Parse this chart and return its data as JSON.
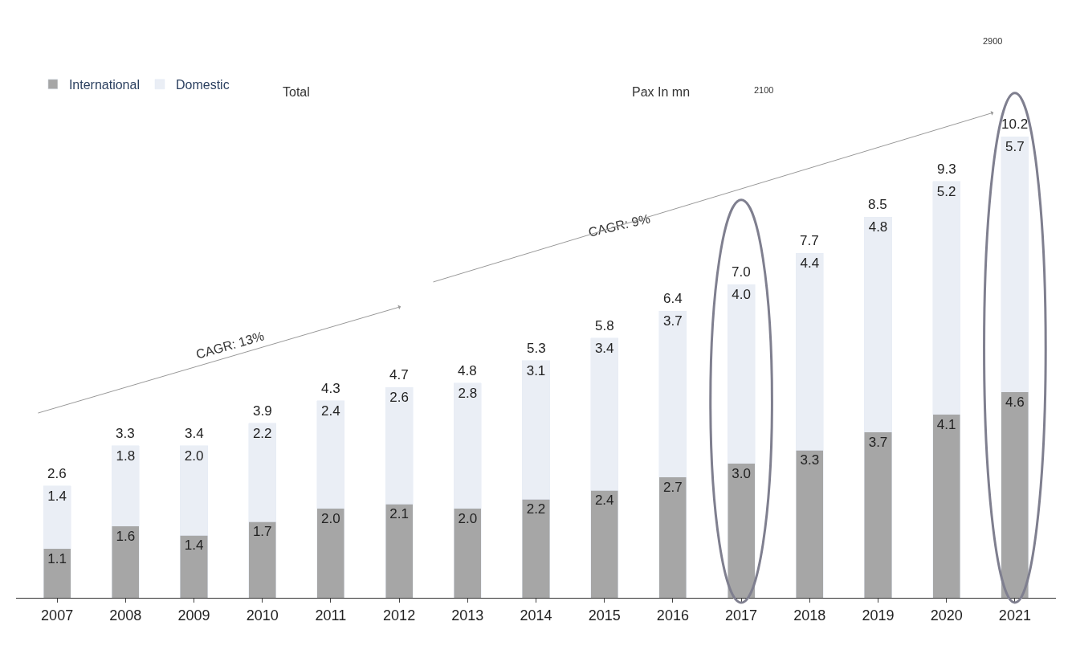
{
  "chart_data": {
    "type": "bar",
    "stacked": true,
    "legend": "top left",
    "categories": [
      "2007",
      "2008",
      "2009",
      "2010",
      "2011",
      "2012",
      "2013",
      "2014",
      "2015",
      "2016",
      "2017",
      "2018",
      "2019",
      "2020",
      "2021"
    ],
    "series": [
      {
        "name": "International",
        "color": "#a6a6a6",
        "values": [
          1.1,
          1.6,
          1.4,
          1.7,
          2.0,
          2.1,
          2.0,
          2.2,
          2.4,
          2.7,
          3.0,
          3.3,
          3.7,
          4.1,
          4.6
        ],
        "value_labels": [
          "1.1",
          "1.6",
          "1.4",
          "1.7",
          "2.0",
          "2.1",
          "2.0",
          "2.2",
          "2.4",
          "2.7",
          "3.0",
          "3.3",
          "3.7",
          "4.1",
          "4.6"
        ]
      },
      {
        "name": "Domestic",
        "color": "#eaeef5",
        "values": [
          1.4,
          1.8,
          2.0,
          2.2,
          2.4,
          2.6,
          2.8,
          3.1,
          3.4,
          3.7,
          4.0,
          4.4,
          4.8,
          5.2,
          5.7
        ],
        "value_labels": [
          "1.4",
          "1.8",
          "2.0",
          "2.2",
          "2.4",
          "2.6",
          "2.8",
          "3.1",
          "3.4",
          "3.7",
          "4.0",
          "4.4",
          "4.8",
          "5.2",
          "5.7"
        ]
      }
    ],
    "totals": [
      "2.6",
      "3.3",
      "3.4",
      "3.9",
      "4.3",
      "4.7",
      "4.8",
      "5.3",
      "5.8",
      "6.4",
      "7.0",
      "7.7",
      "8.5",
      "9.3",
      "10.2"
    ],
    "annotations": [
      "Total",
      "Pax In mn",
      "CAGR: 13%",
      "CAGR: 9%",
      "2100",
      "2900"
    ]
  }
}
